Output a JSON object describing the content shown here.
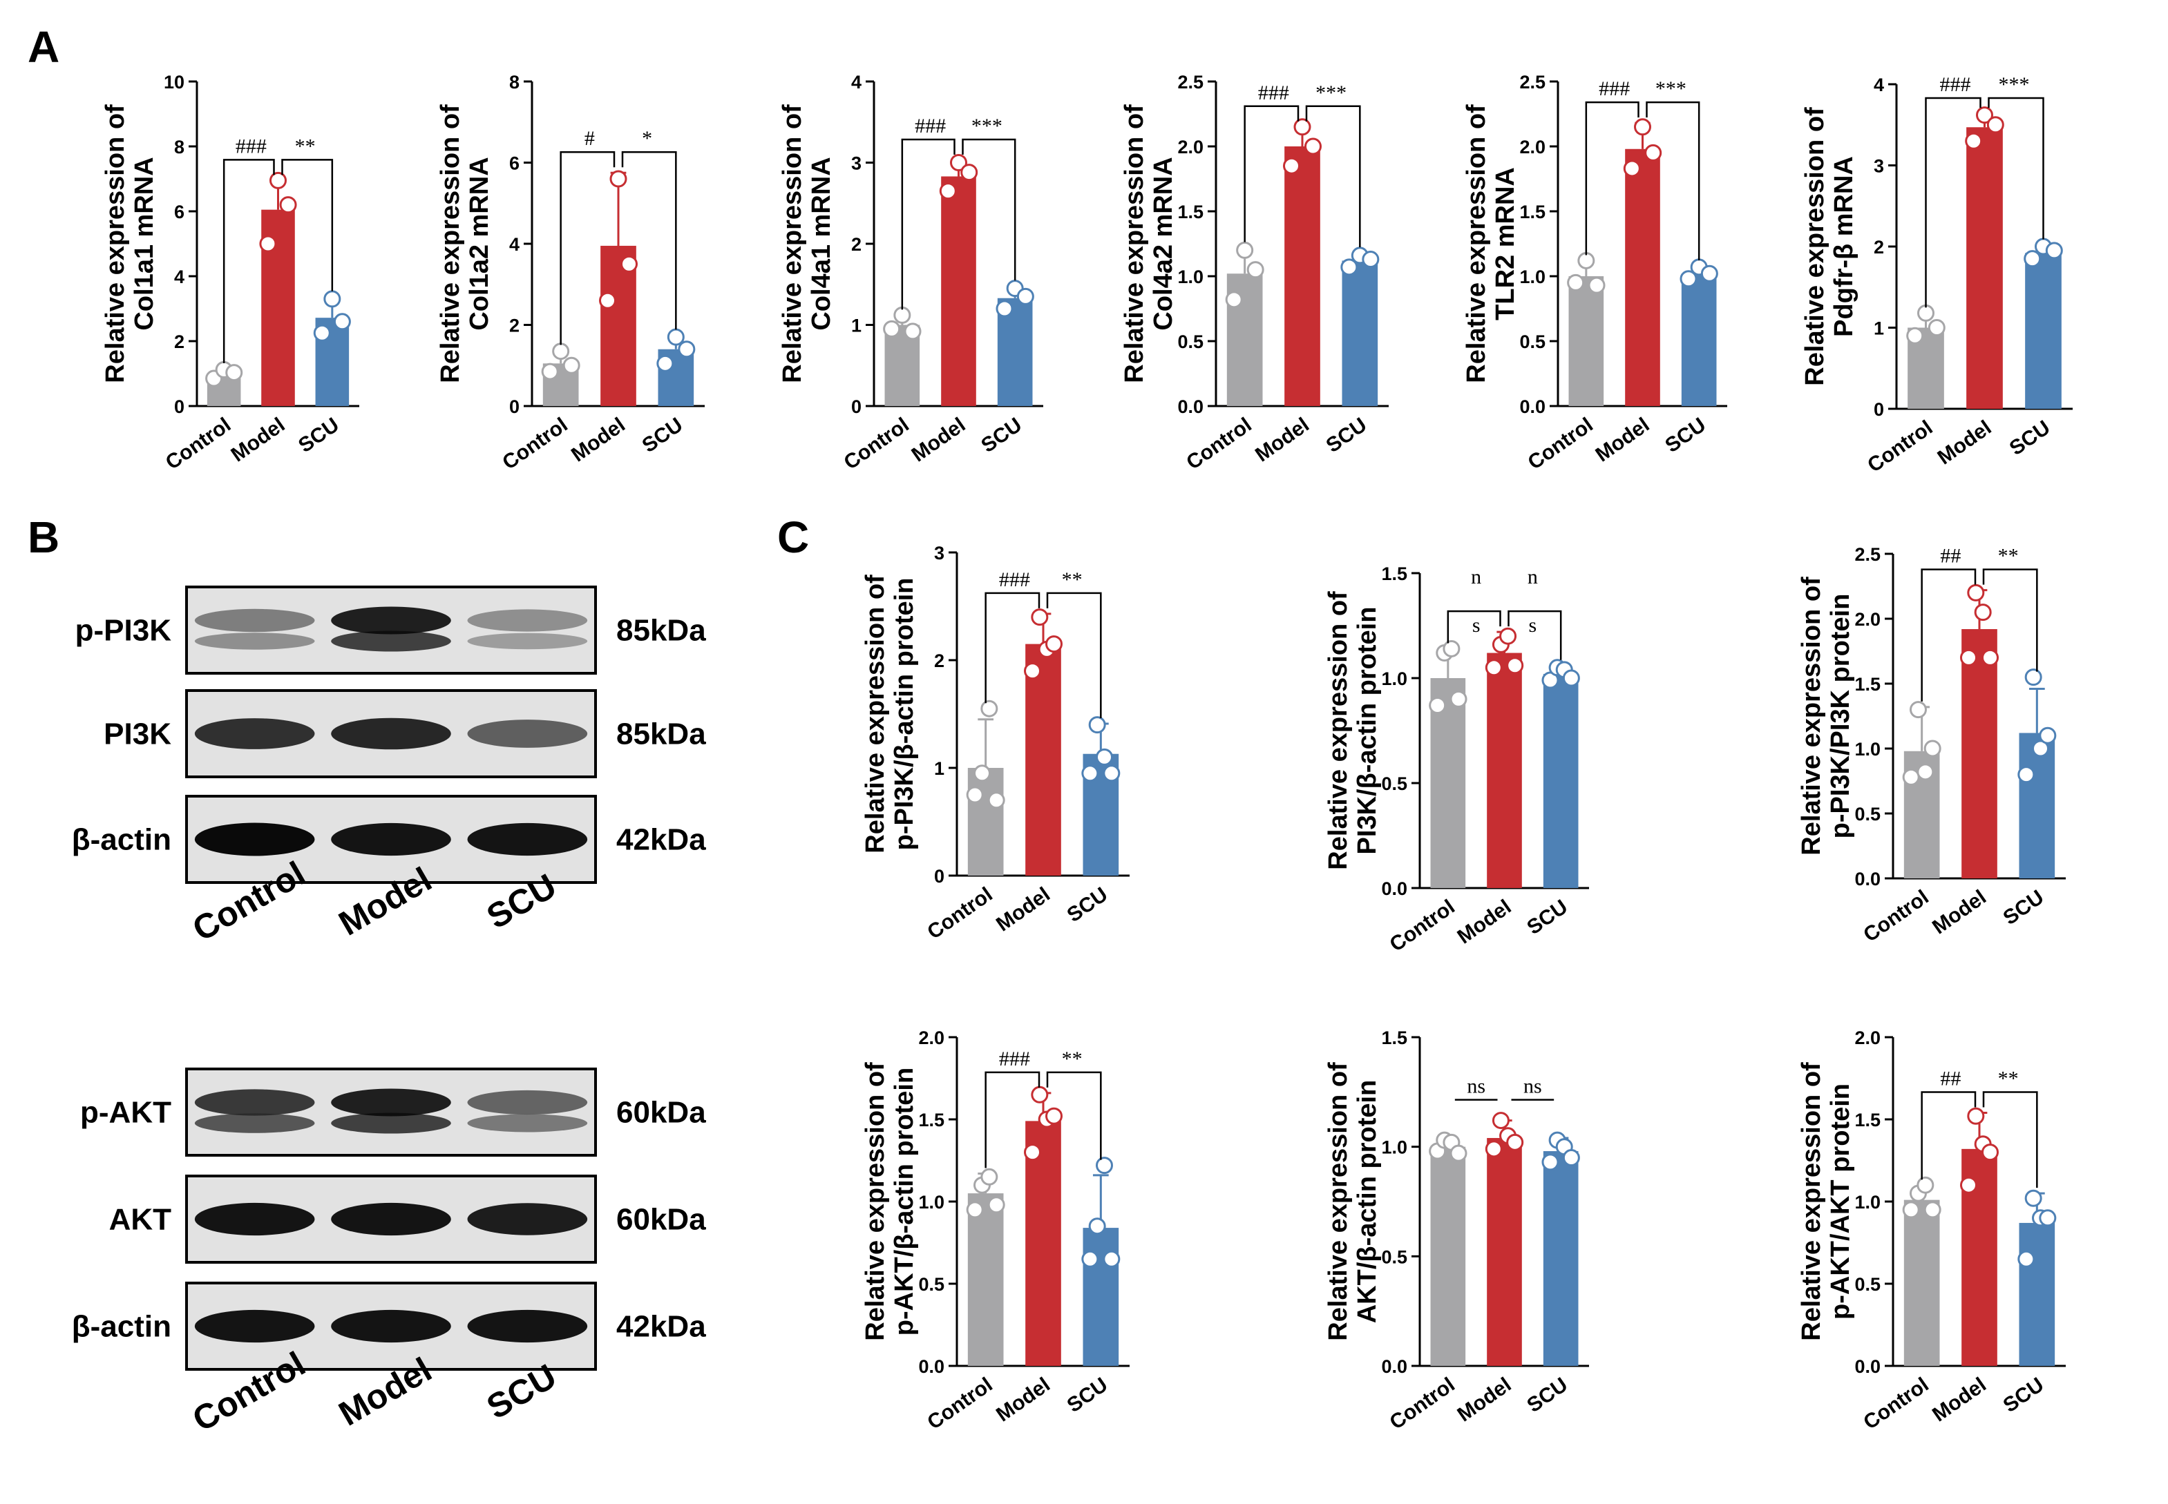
{
  "panel_letters": {
    "a": "A",
    "b": "B",
    "c": "C"
  },
  "colors": {
    "Control": "#a6a6a8",
    "Model": "#c62e32",
    "SCU": "#4e81b5"
  },
  "chart_data": [
    {
      "id": "col1a1",
      "type": "bar",
      "categories": [
        "Control",
        "Model",
        "SCU"
      ],
      "values": [
        1.0,
        6.05,
        2.72
      ],
      "errors": [
        0.15,
        0.9,
        0.65
      ],
      "points": [
        [
          0.85,
          1.12,
          1.03
        ],
        [
          5.0,
          6.95,
          6.2
        ],
        [
          2.25,
          3.3,
          2.6
        ]
      ],
      "ylim": [
        0,
        10
      ],
      "yticks": [
        0,
        2,
        4,
        6,
        8,
        10
      ],
      "tick_labels": [
        "0",
        "2",
        "4",
        "6",
        "8",
        "10"
      ],
      "ylabel": [
        "Relative expression of",
        "Col1a1 mRNA"
      ],
      "sig": [
        {
          "label": "###",
          "from": 0,
          "to": 1
        },
        {
          "label": "**",
          "from": 1,
          "to": 2
        }
      ]
    },
    {
      "id": "col1a2",
      "type": "bar",
      "categories": [
        "Control",
        "Model",
        "SCU"
      ],
      "values": [
        1.05,
        3.95,
        1.4
      ],
      "errors": [
        0.32,
        1.8,
        0.35
      ],
      "points": [
        [
          0.85,
          1.35,
          1.0
        ],
        [
          2.6,
          5.6,
          3.5
        ],
        [
          1.05,
          1.7,
          1.4
        ]
      ],
      "ylim": [
        0,
        8
      ],
      "yticks": [
        0,
        2,
        4,
        6,
        8
      ],
      "tick_labels": [
        "0",
        "2",
        "4",
        "6",
        "8"
      ],
      "ylabel": [
        "Relative expression of",
        "Col1a2 mRNA"
      ],
      "sig": [
        {
          "label": "#",
          "from": 0,
          "to": 1
        },
        {
          "label": "*",
          "from": 1,
          "to": 2
        }
      ]
    },
    {
      "id": "col4a1",
      "type": "bar",
      "categories": [
        "Control",
        "Model",
        "SCU"
      ],
      "values": [
        1.0,
        2.83,
        1.33
      ],
      "errors": [
        0.12,
        0.2,
        0.15
      ],
      "points": [
        [
          0.95,
          1.12,
          0.92
        ],
        [
          2.65,
          3.0,
          2.88
        ],
        [
          1.2,
          1.45,
          1.35
        ]
      ],
      "ylim": [
        0,
        4
      ],
      "yticks": [
        0,
        1,
        2,
        3,
        4
      ],
      "tick_labels": [
        "0",
        "1",
        "2",
        "3",
        "4"
      ],
      "ylabel": [
        "Relative expression of",
        "Col4a1 mRNA"
      ],
      "sig": [
        {
          "label": "###",
          "from": 0,
          "to": 1
        },
        {
          "label": "***",
          "from": 1,
          "to": 2
        }
      ]
    },
    {
      "id": "col4a2",
      "type": "bar",
      "categories": [
        "Control",
        "Model",
        "SCU"
      ],
      "values": [
        1.02,
        2.0,
        1.12
      ],
      "errors": [
        0.2,
        0.15,
        0.06
      ],
      "points": [
        [
          0.82,
          1.2,
          1.05
        ],
        [
          1.85,
          2.15,
          2.0
        ],
        [
          1.07,
          1.16,
          1.13
        ]
      ],
      "ylim": [
        0,
        2.5
      ],
      "yticks": [
        0,
        0.5,
        1.0,
        1.5,
        2.0,
        2.5
      ],
      "tick_labels": [
        "0.0",
        "0.5",
        "1.0",
        "1.5",
        "2.0",
        "2.5"
      ],
      "ylabel": [
        "Relative expression of",
        "Col4a2 mRNA"
      ],
      "sig": [
        {
          "label": "###",
          "from": 0,
          "to": 1
        },
        {
          "label": "***",
          "from": 1,
          "to": 2
        }
      ]
    },
    {
      "id": "tlr2",
      "type": "bar",
      "categories": [
        "Control",
        "Model",
        "SCU"
      ],
      "values": [
        1.0,
        1.98,
        1.02
      ],
      "errors": [
        0.12,
        0.2,
        0.06
      ],
      "points": [
        [
          0.95,
          1.12,
          0.93
        ],
        [
          1.83,
          2.15,
          1.95
        ],
        [
          0.98,
          1.07,
          1.02
        ]
      ],
      "ylim": [
        0,
        2.5
      ],
      "yticks": [
        0,
        0.5,
        1.0,
        1.5,
        2.0,
        2.5
      ],
      "tick_labels": [
        "0.0",
        "0.5",
        "1.0",
        "1.5",
        "2.0",
        "2.5"
      ],
      "ylabel": [
        "Relative expression of",
        "TLR2 mRNA"
      ],
      "sig": [
        {
          "label": "###",
          "from": 0,
          "to": 1
        },
        {
          "label": "***",
          "from": 1,
          "to": 2
        }
      ]
    },
    {
      "id": "pdgfrb",
      "type": "bar",
      "categories": [
        "Control",
        "Model",
        "SCU"
      ],
      "values": [
        1.0,
        3.47,
        1.92
      ],
      "errors": [
        0.15,
        0.17,
        0.1
      ],
      "points": [
        [
          0.9,
          1.18,
          1.0
        ],
        [
          3.3,
          3.62,
          3.5
        ],
        [
          1.85,
          2.0,
          1.95
        ]
      ],
      "ylim": [
        0,
        4
      ],
      "yticks": [
        0,
        1,
        2,
        3,
        4
      ],
      "tick_labels": [
        "0",
        "1",
        "2",
        "3",
        "4"
      ],
      "ylabel": [
        "Relative expression of",
        "Pdgfr-β mRNA"
      ],
      "sig": [
        {
          "label": "###",
          "from": 0,
          "to": 1
        },
        {
          "label": "***",
          "from": 1,
          "to": 2
        }
      ]
    },
    {
      "id": "p_pi3k_actin",
      "type": "bar",
      "categories": [
        "Control",
        "Model",
        "SCU"
      ],
      "values": [
        1.0,
        2.15,
        1.13
      ],
      "errors": [
        0.45,
        0.28,
        0.28
      ],
      "points": [
        [
          0.75,
          0.95,
          1.55,
          0.7
        ],
        [
          1.9,
          2.4,
          2.1,
          2.15
        ],
        [
          0.95,
          1.4,
          1.1,
          0.95
        ]
      ],
      "ylim": [
        0,
        3
      ],
      "yticks": [
        0,
        1,
        2,
        3
      ],
      "tick_labels": [
        "0",
        "1",
        "2",
        "3"
      ],
      "ylabel": [
        "Relative expression of",
        "p-PI3K/β-actin protein"
      ],
      "sig": [
        {
          "label": "###",
          "from": 0,
          "to": 1
        },
        {
          "label": "**",
          "from": 1,
          "to": 2
        }
      ]
    },
    {
      "id": "pi3k_actin",
      "type": "bar",
      "categories": [
        "Control",
        "Model",
        "SCU"
      ],
      "values": [
        1.0,
        1.12,
        1.02
      ],
      "errors": [
        0.14,
        0.1,
        0.04
      ],
      "points": [
        [
          0.87,
          1.12,
          1.14,
          0.9
        ],
        [
          1.05,
          1.16,
          1.2,
          1.06
        ],
        [
          0.99,
          1.05,
          1.04,
          1.0
        ]
      ],
      "ylim": [
        0,
        1.5
      ],
      "yticks": [
        0,
        0.5,
        1.0,
        1.5
      ],
      "tick_labels": [
        "0.0",
        "0.5",
        "1.0",
        "1.5"
      ],
      "ylabel": [
        "Relative expression of",
        "PI3K/β-actin protein"
      ],
      "sig": [
        {
          "label": "n s",
          "from": 0,
          "to": 1
        },
        {
          "label": "n s",
          "from": 1,
          "to": 2
        }
      ]
    },
    {
      "id": "p_pi3k_pi3k",
      "type": "bar",
      "categories": [
        "Control",
        "Model",
        "SCU"
      ],
      "values": [
        0.98,
        1.92,
        1.12
      ],
      "errors": [
        0.34,
        0.3,
        0.34
      ],
      "points": [
        [
          0.78,
          1.3,
          0.82,
          1.0
        ],
        [
          1.7,
          2.2,
          2.05,
          1.7
        ],
        [
          0.8,
          1.55,
          1.0,
          1.1
        ]
      ],
      "ylim": [
        0,
        2.5
      ],
      "yticks": [
        0,
        0.5,
        1.0,
        1.5,
        2.0,
        2.5
      ],
      "tick_labels": [
        "0.0",
        "0.5",
        "1.0",
        "1.5",
        "2.0",
        "2.5"
      ],
      "ylabel": [
        "Relative expression of",
        "p-PI3K/PI3K protein"
      ],
      "sig": [
        {
          "label": "##",
          "from": 0,
          "to": 1
        },
        {
          "label": "**",
          "from": 1,
          "to": 2
        }
      ]
    },
    {
      "id": "p_akt_actin",
      "type": "bar",
      "categories": [
        "Control",
        "Model",
        "SCU"
      ],
      "values": [
        1.05,
        1.49,
        0.84
      ],
      "errors": [
        0.12,
        0.17,
        0.32
      ],
      "points": [
        [
          0.95,
          1.1,
          1.15,
          0.98
        ],
        [
          1.3,
          1.65,
          1.5,
          1.52
        ],
        [
          0.65,
          0.85,
          1.22,
          0.65
        ]
      ],
      "ylim": [
        0,
        2.0
      ],
      "yticks": [
        0,
        0.5,
        1.0,
        1.5,
        2.0
      ],
      "tick_labels": [
        "0.0",
        "0.5",
        "1.0",
        "1.5",
        "2.0"
      ],
      "ylabel": [
        "Relative expression of",
        "p-AKT/β-actin protein"
      ],
      "sig": [
        {
          "label": "###",
          "from": 0,
          "to": 1
        },
        {
          "label": "**",
          "from": 1,
          "to": 2
        }
      ]
    },
    {
      "id": "akt_actin",
      "type": "bar",
      "categories": [
        "Control",
        "Model",
        "SCU"
      ],
      "values": [
        1.0,
        1.04,
        0.98
      ],
      "errors": [
        0.04,
        0.08,
        0.06
      ],
      "points": [
        [
          0.98,
          1.03,
          1.02,
          0.97
        ],
        [
          0.99,
          1.12,
          1.05,
          1.02
        ],
        [
          0.93,
          1.03,
          1.0,
          0.95
        ]
      ],
      "ylim": [
        0,
        1.5
      ],
      "yticks": [
        0,
        0.5,
        1.0,
        1.5
      ],
      "tick_labels": [
        "0.0",
        "0.5",
        "1.0",
        "1.5"
      ],
      "ylabel": [
        "Relative expression of",
        "AKT/β-actin protein"
      ],
      "sig": [
        {
          "label": "ns",
          "from": 0,
          "to": 1
        },
        {
          "label": "ns",
          "from": 1,
          "to": 2
        }
      ]
    },
    {
      "id": "p_akt_akt",
      "type": "bar",
      "categories": [
        "Control",
        "Model",
        "SCU"
      ],
      "values": [
        1.01,
        1.32,
        0.87
      ],
      "errors": [
        0.08,
        0.22,
        0.18
      ],
      "points": [
        [
          0.95,
          1.05,
          1.1,
          0.95
        ],
        [
          1.1,
          1.52,
          1.35,
          1.3
        ],
        [
          0.65,
          1.02,
          0.9,
          0.9
        ]
      ],
      "ylim": [
        0,
        2.0
      ],
      "yticks": [
        0,
        0.5,
        1.0,
        1.5,
        2.0
      ],
      "tick_labels": [
        "0.0",
        "0.5",
        "1.0",
        "1.5",
        "2.0"
      ],
      "ylabel": [
        "Relative expression of",
        "p-AKT/AKT protein"
      ],
      "sig": [
        {
          "label": "##",
          "from": 0,
          "to": 1
        },
        {
          "label": "**",
          "from": 1,
          "to": 2
        }
      ]
    }
  ],
  "western_blots": [
    {
      "id": "pi3k",
      "lanes": [
        "Control",
        "Model",
        "SCU"
      ],
      "rows": [
        {
          "label": "p-PI3K",
          "kda": "85kDa",
          "intensity": [
            0.45,
            1.0,
            0.35
          ],
          "double": true
        },
        {
          "label": "PI3K",
          "kda": "85kDa",
          "intensity": [
            0.8,
            0.85,
            0.55
          ],
          "double": false
        },
        {
          "label": "β-actin",
          "kda": "42kDa",
          "intensity": [
            1.0,
            0.95,
            0.95
          ],
          "double": false
        }
      ]
    },
    {
      "id": "akt",
      "lanes": [
        "Control",
        "Model",
        "SCU"
      ],
      "rows": [
        {
          "label": "p-AKT",
          "kda": "60kDa",
          "intensity": [
            0.85,
            1.0,
            0.6
          ],
          "double": true
        },
        {
          "label": "AKT",
          "kda": "60kDa",
          "intensity": [
            0.95,
            0.95,
            0.9
          ],
          "double": false
        },
        {
          "label": "β-actin",
          "kda": "42kDa",
          "intensity": [
            0.95,
            0.95,
            0.95
          ],
          "double": false
        }
      ]
    }
  ]
}
